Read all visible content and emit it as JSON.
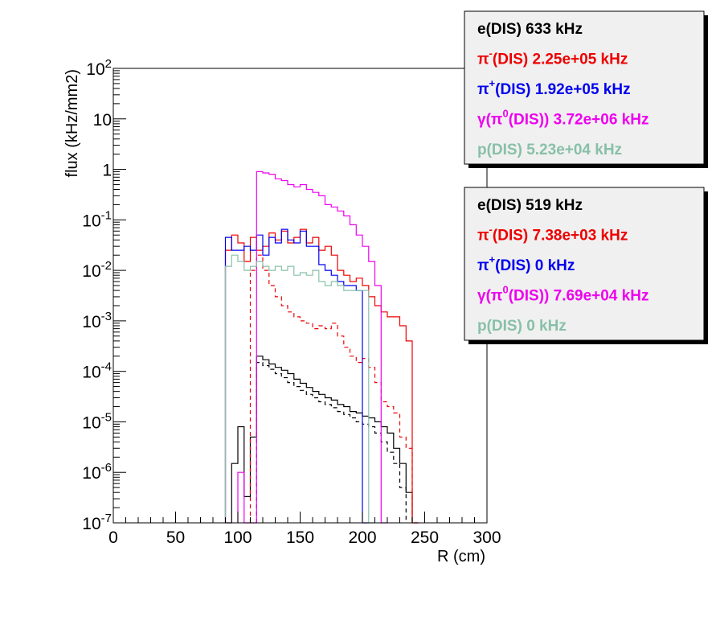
{
  "chart_data": {
    "type": "line",
    "title": "",
    "xlabel": "R (cm)",
    "ylabel": "flux (kHz/mm2)",
    "xlim": [
      0,
      300
    ],
    "ylim": [
      1e-07,
      100
    ],
    "yscale": "log",
    "grid": false,
    "bin_width": 5,
    "x_ticks": [
      0,
      50,
      100,
      150,
      200,
      250,
      300
    ],
    "x_tick_labels": [
      "0",
      "50",
      "100",
      "150",
      "200",
      "250",
      "300"
    ],
    "y_ticks": [
      1e-07,
      1e-06,
      1e-05,
      0.0001,
      0.001,
      0.01,
      0.1,
      1,
      10,
      100
    ],
    "y_tick_labels": [
      {
        "base": "10",
        "exp": "-7"
      },
      {
        "base": "10",
        "exp": "-6"
      },
      {
        "base": "10",
        "exp": "-5"
      },
      {
        "base": "10",
        "exp": "-4"
      },
      {
        "base": "10",
        "exp": "-3"
      },
      {
        "base": "10",
        "exp": "-2"
      },
      {
        "base": "10",
        "exp": "-1"
      },
      {
        "base": "1",
        "exp": ""
      },
      {
        "base": "10",
        "exp": ""
      },
      {
        "base": "10",
        "exp": "2"
      }
    ],
    "series": [
      {
        "key": "e_solid",
        "color": "#000000",
        "dashed": false,
        "bins": [
          [
            90,
            95,
            1e-07
          ],
          [
            95,
            100,
            1.5e-06
          ],
          [
            100,
            105,
            8e-06
          ],
          [
            105,
            110,
            3.3e-07
          ],
          [
            110,
            115,
            5e-06
          ],
          [
            115,
            120,
            0.0002
          ],
          [
            120,
            125,
            0.00017
          ],
          [
            125,
            130,
            0.00014
          ],
          [
            130,
            135,
            0.00012
          ],
          [
            135,
            140,
            0.000105
          ],
          [
            140,
            145,
            9e-05
          ],
          [
            145,
            150,
            7e-05
          ],
          [
            150,
            155,
            5.8e-05
          ],
          [
            155,
            160,
            4.8e-05
          ],
          [
            160,
            165,
            4e-05
          ],
          [
            165,
            170,
            3.5e-05
          ],
          [
            170,
            175,
            3e-05
          ],
          [
            175,
            180,
            2.7e-05
          ],
          [
            180,
            185,
            2.2e-05
          ],
          [
            185,
            190,
            2e-05
          ],
          [
            190,
            195,
            1.6e-05
          ],
          [
            195,
            200,
            1.5e-05
          ],
          [
            200,
            205,
            1.3e-05
          ],
          [
            205,
            210,
            1.2e-05
          ],
          [
            210,
            215,
            1e-05
          ],
          [
            215,
            220,
            8e-06
          ],
          [
            220,
            225,
            6e-06
          ],
          [
            225,
            230,
            3e-06
          ],
          [
            230,
            235,
            1.5e-06
          ],
          [
            235,
            240,
            4e-07
          ]
        ]
      },
      {
        "key": "e_dashed",
        "color": "#000000",
        "dashed": true,
        "bins": [
          [
            115,
            120,
            0.00015
          ],
          [
            120,
            125,
            0.00013
          ],
          [
            125,
            130,
            0.00011
          ],
          [
            130,
            135,
            9e-05
          ],
          [
            135,
            140,
            7.5e-05
          ],
          [
            140,
            145,
            6e-05
          ],
          [
            145,
            150,
            5e-05
          ],
          [
            150,
            155,
            4.2e-05
          ],
          [
            155,
            160,
            3.5e-05
          ],
          [
            160,
            165,
            3e-05
          ],
          [
            165,
            170,
            2.5e-05
          ],
          [
            170,
            175,
            2.2e-05
          ],
          [
            175,
            180,
            1.9e-05
          ],
          [
            180,
            185,
            1.6e-05
          ],
          [
            185,
            190,
            1.4e-05
          ],
          [
            190,
            195,
            1.2e-05
          ],
          [
            195,
            200,
            1e-05
          ],
          [
            200,
            205,
            9e-06
          ],
          [
            205,
            210,
            8e-06
          ],
          [
            210,
            215,
            6e-06
          ],
          [
            215,
            220,
            4e-06
          ],
          [
            220,
            225,
            2.5e-06
          ],
          [
            225,
            230,
            1.5e-06
          ],
          [
            230,
            235,
            5e-07
          ]
        ]
      },
      {
        "key": "pim_solid",
        "color": "#ee0000",
        "dashed": false,
        "bins": [
          [
            90,
            95,
            0.025
          ],
          [
            95,
            100,
            0.05
          ],
          [
            100,
            105,
            0.035
          ],
          [
            105,
            110,
            0.015
          ],
          [
            110,
            115,
            0.045
          ],
          [
            115,
            120,
            0.025
          ],
          [
            120,
            125,
            0.03
          ],
          [
            125,
            130,
            0.055
          ],
          [
            130,
            135,
            0.04
          ],
          [
            135,
            140,
            0.06
          ],
          [
            140,
            145,
            0.035
          ],
          [
            145,
            150,
            0.045
          ],
          [
            150,
            155,
            0.065
          ],
          [
            155,
            160,
            0.035
          ],
          [
            160,
            165,
            0.045
          ],
          [
            165,
            170,
            0.025
          ],
          [
            170,
            175,
            0.03
          ],
          [
            175,
            180,
            0.02
          ],
          [
            180,
            185,
            0.01
          ],
          [
            185,
            190,
            0.008
          ],
          [
            190,
            195,
            0.006
          ],
          [
            195,
            200,
            0.007
          ],
          [
            200,
            205,
            0.005
          ],
          [
            205,
            210,
            0.003
          ],
          [
            210,
            215,
            0.002
          ],
          [
            215,
            220,
            0.0015
          ],
          [
            220,
            225,
            0.0012
          ],
          [
            225,
            230,
            0.0012
          ],
          [
            230,
            235,
            0.0008
          ],
          [
            235,
            240,
            0.0004
          ],
          [
            240,
            245,
            1e-07
          ]
        ]
      },
      {
        "key": "pim_dashed",
        "color": "#ee0000",
        "dashed": true,
        "bins": [
          [
            110,
            115,
            0.01
          ],
          [
            115,
            120,
            0.02
          ],
          [
            120,
            125,
            0.01
          ],
          [
            125,
            130,
            0.005
          ],
          [
            130,
            135,
            0.003
          ],
          [
            135,
            140,
            0.002
          ],
          [
            140,
            145,
            0.0015
          ],
          [
            145,
            150,
            0.0012
          ],
          [
            150,
            155,
            0.001
          ],
          [
            155,
            160,
            0.0009
          ],
          [
            160,
            165,
            0.0007
          ],
          [
            165,
            170,
            0.0008
          ],
          [
            170,
            175,
            0.0007
          ],
          [
            175,
            180,
            0.0009
          ],
          [
            180,
            185,
            0.0005
          ],
          [
            185,
            190,
            0.0003
          ],
          [
            190,
            195,
            0.0002
          ],
          [
            195,
            200,
            0.00015
          ],
          [
            200,
            205,
            0.00018
          ],
          [
            205,
            210,
            0.00012
          ],
          [
            210,
            215,
            6e-05
          ],
          [
            215,
            220,
            2.5e-05
          ],
          [
            220,
            225,
            2e-05
          ],
          [
            225,
            230,
            1.5e-05
          ],
          [
            230,
            235,
            5e-06
          ],
          [
            235,
            240,
            3e-06
          ],
          [
            240,
            245,
            1e-07
          ]
        ]
      },
      {
        "key": "pip",
        "color": "#0000ee",
        "dashed": false,
        "bins": [
          [
            90,
            95,
            0.045
          ],
          [
            95,
            100,
            0.025
          ],
          [
            100,
            105,
            0.025
          ],
          [
            105,
            110,
            0.03
          ],
          [
            110,
            115,
            0.025
          ],
          [
            115,
            120,
            0.05
          ],
          [
            120,
            125,
            0.02
          ],
          [
            125,
            130,
            0.045
          ],
          [
            130,
            135,
            0.035
          ],
          [
            135,
            140,
            0.065
          ],
          [
            140,
            145,
            0.04
          ],
          [
            145,
            150,
            0.035
          ],
          [
            150,
            155,
            0.06
          ],
          [
            155,
            160,
            0.03
          ],
          [
            160,
            165,
            0.03
          ],
          [
            165,
            170,
            0.013
          ],
          [
            170,
            175,
            0.01
          ],
          [
            175,
            180,
            0.008
          ],
          [
            180,
            185,
            0.006
          ],
          [
            185,
            190,
            0.005
          ],
          [
            190,
            195,
            0.005
          ],
          [
            195,
            200,
            0.004
          ],
          [
            200,
            205,
            1e-07
          ]
        ]
      },
      {
        "key": "gamma",
        "color": "#ee00ee",
        "dashed": false,
        "bins": [
          [
            100,
            105,
            1e-06
          ],
          [
            105,
            110,
            1e-07
          ],
          [
            110,
            115,
            1e-07
          ],
          [
            115,
            120,
            0.9
          ],
          [
            120,
            125,
            0.85
          ],
          [
            125,
            130,
            0.8
          ],
          [
            130,
            135,
            0.65
          ],
          [
            135,
            140,
            0.6
          ],
          [
            140,
            145,
            0.5
          ],
          [
            145,
            150,
            0.45
          ],
          [
            150,
            155,
            0.5
          ],
          [
            155,
            160,
            0.4
          ],
          [
            160,
            165,
            0.35
          ],
          [
            165,
            170,
            0.3
          ],
          [
            170,
            175,
            0.2
          ],
          [
            175,
            180,
            0.18
          ],
          [
            180,
            185,
            0.15
          ],
          [
            185,
            190,
            0.12
          ],
          [
            190,
            195,
            0.08
          ],
          [
            195,
            200,
            0.05
          ],
          [
            200,
            205,
            0.03
          ],
          [
            205,
            210,
            0.015
          ],
          [
            210,
            215,
            0.005
          ],
          [
            215,
            220,
            1e-07
          ]
        ]
      },
      {
        "key": "p",
        "color": "#88c0a8",
        "dashed": false,
        "bins": [
          [
            90,
            95,
            0.012
          ],
          [
            95,
            100,
            0.02
          ],
          [
            100,
            105,
            0.015
          ],
          [
            105,
            110,
            0.01
          ],
          [
            110,
            115,
            0.012
          ],
          [
            115,
            120,
            0.015
          ],
          [
            120,
            125,
            0.012
          ],
          [
            125,
            130,
            0.01
          ],
          [
            130,
            135,
            0.012
          ],
          [
            135,
            140,
            0.01
          ],
          [
            140,
            145,
            0.012
          ],
          [
            145,
            150,
            0.008
          ],
          [
            150,
            155,
            0.009
          ],
          [
            155,
            160,
            0.008
          ],
          [
            160,
            165,
            0.01
          ],
          [
            165,
            170,
            0.006
          ],
          [
            170,
            175,
            0.005
          ],
          [
            175,
            180,
            0.006
          ],
          [
            180,
            185,
            0.005
          ],
          [
            185,
            190,
            0.004
          ],
          [
            190,
            195,
            0.004
          ],
          [
            195,
            200,
            0.004
          ],
          [
            200,
            205,
            0.004
          ],
          [
            205,
            210,
            1e-07
          ]
        ]
      }
    ]
  },
  "legends": [
    {
      "entries": [
        {
          "prefix": "e",
          "sup": "",
          "mid": "",
          "sup2": "",
          "suffix": "(DIS)  633 kHz",
          "color": "#000000"
        },
        {
          "prefix": "π",
          "sup": "-",
          "mid": "",
          "sup2": "",
          "suffix": "(DIS)  2.25e+05 kHz",
          "color": "#ee0000"
        },
        {
          "prefix": "π",
          "sup": "+",
          "mid": "",
          "sup2": "",
          "suffix": "(DIS)  1.92e+05 kHz",
          "color": "#0000ee"
        },
        {
          "prefix": "γ(π",
          "sup": "0",
          "mid": "",
          "sup2": "",
          "suffix": "(DIS))  3.72e+06 kHz",
          "color": "#ee00ee"
        },
        {
          "prefix": "p",
          "sup": "",
          "mid": "",
          "sup2": "",
          "suffix": "(DIS)  5.23e+04 kHz",
          "color": "#88c0a8"
        }
      ]
    },
    {
      "entries": [
        {
          "prefix": "e",
          "sup": "",
          "mid": "",
          "sup2": "",
          "suffix": "(DIS)  519 kHz",
          "color": "#000000"
        },
        {
          "prefix": "π",
          "sup": "-",
          "mid": "",
          "sup2": "",
          "suffix": "(DIS)  7.38e+03 kHz",
          "color": "#ee0000"
        },
        {
          "prefix": "π",
          "sup": "+",
          "mid": "",
          "sup2": "",
          "suffix": "(DIS)  0 kHz",
          "color": "#0000ee"
        },
        {
          "prefix": "γ(π",
          "sup": "0",
          "mid": "",
          "sup2": "",
          "suffix": "(DIS))  7.69e+04 kHz",
          "color": "#ee00ee"
        },
        {
          "prefix": "p",
          "sup": "",
          "mid": "",
          "sup2": "",
          "suffix": "(DIS)  0 kHz",
          "color": "#88c0a8"
        }
      ]
    }
  ]
}
